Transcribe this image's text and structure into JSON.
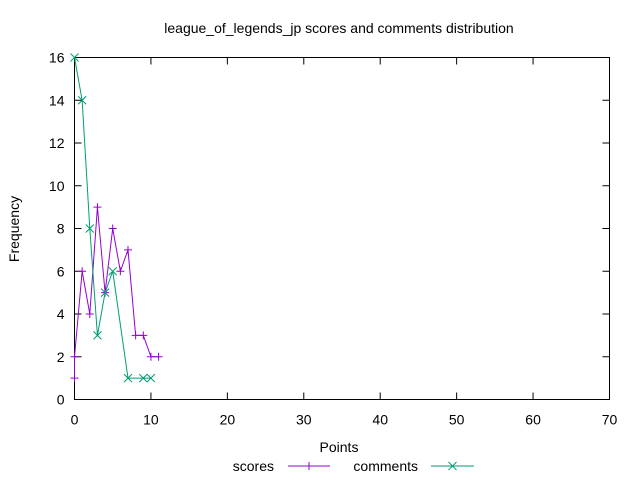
{
  "chart_data": {
    "type": "line",
    "title": "league_of_legends_jp scores and comments distribution",
    "xlabel": "Points",
    "ylabel": "Frequency",
    "xlim": [
      0,
      70
    ],
    "ylim": [
      0,
      16
    ],
    "xticks": [
      0,
      10,
      20,
      30,
      40,
      50,
      60,
      70
    ],
    "yticks": [
      0,
      2,
      4,
      6,
      8,
      10,
      12,
      14,
      16
    ],
    "grid": false,
    "legend_position": "bottom-center",
    "series": [
      {
        "name": "scores",
        "color": "#9400d3",
        "marker": "plus",
        "points": [
          [
            0,
            1
          ],
          [
            0,
            2
          ],
          [
            1,
            6
          ],
          [
            2,
            4
          ],
          [
            3,
            9
          ],
          [
            4,
            5
          ],
          [
            5,
            8
          ],
          [
            6,
            6
          ],
          [
            7,
            7
          ],
          [
            8,
            3
          ],
          [
            9,
            3
          ],
          [
            10,
            2
          ],
          [
            11,
            2
          ]
        ]
      },
      {
        "name": "comments",
        "color": "#009e73",
        "marker": "cross",
        "points": [
          [
            0,
            16
          ],
          [
            1,
            14
          ],
          [
            2,
            8
          ],
          [
            3,
            3
          ],
          [
            4,
            5
          ],
          [
            5,
            6
          ],
          [
            7,
            1
          ],
          [
            9,
            1
          ],
          [
            10,
            1
          ]
        ]
      }
    ]
  }
}
